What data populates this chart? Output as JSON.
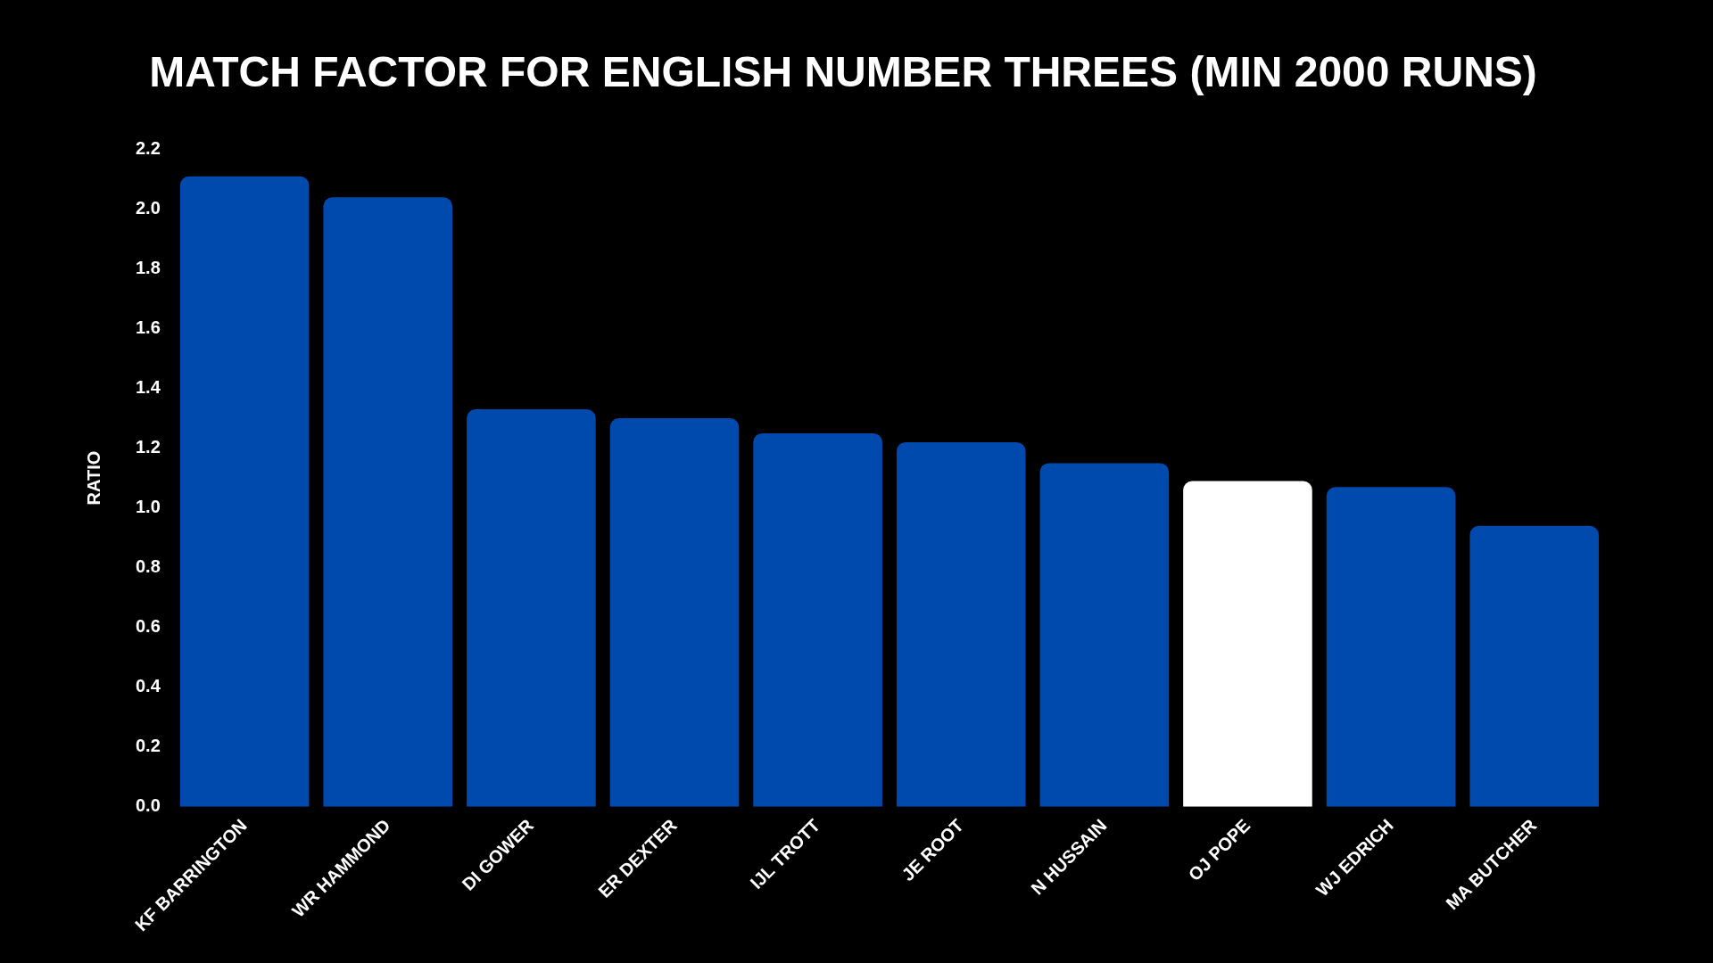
{
  "chart_data": {
    "type": "bar",
    "title": "MATCH FACTOR FOR ENGLISH NUMBER THREES (MIN 2000 RUNS)",
    "ylabel": "RATIO",
    "categories": [
      "KF BARRINGTON",
      "WR HAMMOND",
      "DI GOWER",
      "ER DEXTER",
      "IJL TROTT",
      "JE ROOT",
      "N HUSSAIN",
      "OJ POPE",
      "WJ EDRICH",
      "MA BUTCHER"
    ],
    "values": [
      2.11,
      2.04,
      1.33,
      1.3,
      1.25,
      1.22,
      1.15,
      1.09,
      1.07,
      0.94
    ],
    "colors": [
      "#004aad",
      "#004aad",
      "#004aad",
      "#004aad",
      "#004aad",
      "#004aad",
      "#004aad",
      "#ffffff",
      "#004aad",
      "#004aad"
    ],
    "ylim": [
      0,
      2.2
    ],
    "yticks": [
      {
        "value": 0,
        "label": "0.0"
      },
      {
        "value": 0.2,
        "label": "0.2"
      },
      {
        "value": 0.4,
        "label": "0.4"
      },
      {
        "value": 0.6,
        "label": "0.6"
      },
      {
        "value": 0.8,
        "label": "0.8"
      },
      {
        "value": 1,
        "label": "1.0"
      },
      {
        "value": 1.2,
        "label": "1.2"
      },
      {
        "value": 1.4,
        "label": "1.4"
      },
      {
        "value": 1.6,
        "label": "1.6"
      },
      {
        "value": 1.8,
        "label": "1.8"
      },
      {
        "value": 2,
        "label": "2.0"
      },
      {
        "value": 2.2,
        "label": "2.2"
      }
    ],
    "grid": false,
    "legend": false
  }
}
